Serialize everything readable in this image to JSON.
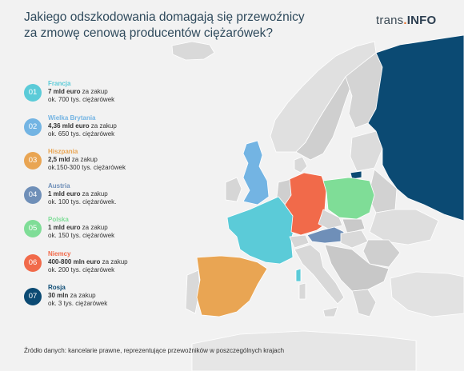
{
  "title": "Jakiego odszkodowania domagają się przewoźnicy za zmowę cenową producentów ciężarówek?",
  "brand": {
    "part1": "trans",
    "dot": ".",
    "part2": "INFO"
  },
  "colors": {
    "background": "#f2f2f2",
    "land_default": "#d6d6d6",
    "land_light": "#e4e4e4",
    "border": "#ffffff",
    "francja": "#5bcbd8",
    "wielka_brytania": "#73b4e3",
    "hiszpania": "#e9a553",
    "austria": "#6f8fb8",
    "polska": "#7fdd97",
    "niemcy": "#f16a4a",
    "rosja": "#0b4a73"
  },
  "legend": [
    {
      "num": "01",
      "country": "Francja",
      "amount": "7 mld euro",
      "suffix": " za zakup",
      "detail": "ok. 700 tys. ciężarówek",
      "color": "#5bcbd8"
    },
    {
      "num": "02",
      "country": "Wielka Brytania",
      "amount": "4,36 mld euro",
      "suffix": " za zakup",
      "detail": "ok. 650 tys. ciężarówek",
      "color": "#73b4e3"
    },
    {
      "num": "03",
      "country": "Hiszpania",
      "amount": "2,5 mld",
      "suffix": " za zakup",
      "detail": "ok.150-300 tys. ciężarówek",
      "color": "#e9a553"
    },
    {
      "num": "04",
      "country": "Austria",
      "amount": "1 mld euro",
      "suffix": " za zakup",
      "detail": "ok. 100 tys. ciężarówek.",
      "color": "#6f8fb8"
    },
    {
      "num": "05",
      "country": "Polska",
      "amount": "1 mld euro",
      "suffix": " za zakup",
      "detail": "ok. 150 tys. ciężarówek",
      "color": "#7fdd97"
    },
    {
      "num": "06",
      "country": "Niemcy",
      "amount": "400-800 mln euro",
      "suffix": " za zakup",
      "detail": "ok. 200 tys. ciężarówek",
      "color": "#f16a4a"
    },
    {
      "num": "07",
      "country": "Rosja",
      "amount": "30 mln",
      "suffix": " za zakup",
      "detail": "ok. 3 tys. ciężarówek",
      "color": "#0b4a73"
    }
  ],
  "source": "Źródło danych: kancelarie prawne, reprezentujące przewoźników w poszczególnych krajach"
}
